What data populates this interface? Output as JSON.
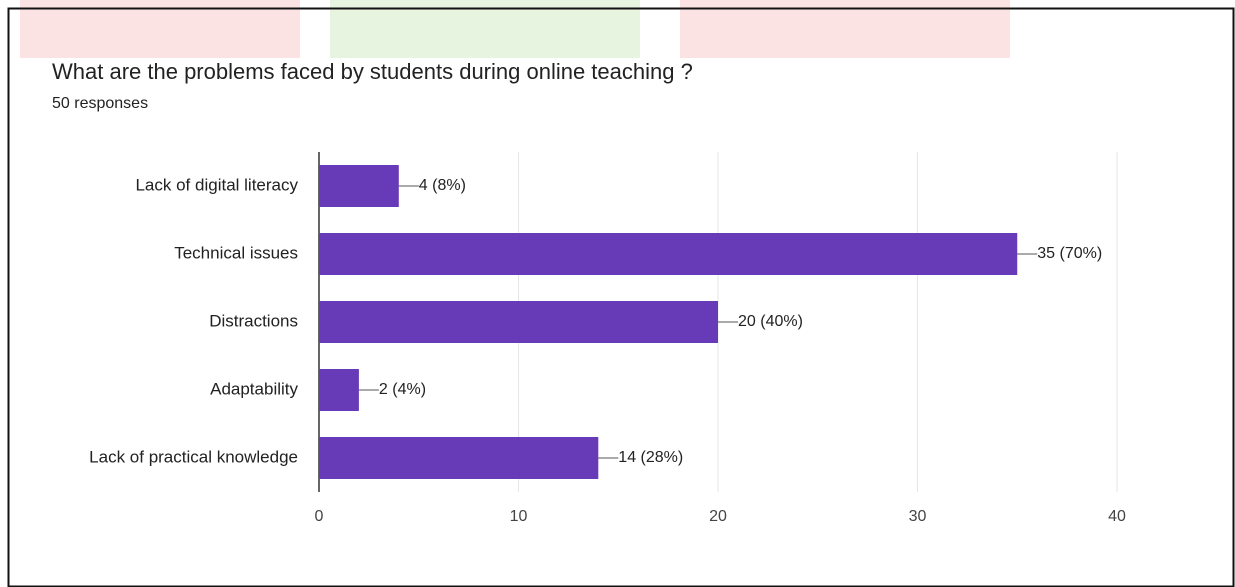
{
  "chart_data": {
    "type": "bar",
    "orientation": "horizontal",
    "title": "What are the problems faced by students during online teaching ?",
    "subtitle": "50 responses",
    "categories": [
      "Lack of digital literacy",
      "Technical issues",
      "Distractions",
      "Adaptability",
      "Lack of practical knowledge"
    ],
    "values": [
      4,
      35,
      20,
      2,
      14
    ],
    "value_labels": [
      "4 (8%)",
      "35 (70%)",
      "20 (40%)",
      "2 (4%)",
      "14 (28%)"
    ],
    "color": "#673ab7",
    "xlim": [
      0,
      40
    ],
    "xticks": [
      0,
      10,
      20,
      30,
      40
    ],
    "grid": true
  }
}
